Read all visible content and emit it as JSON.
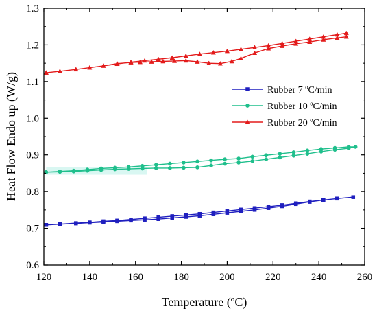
{
  "chart_data": {
    "type": "line",
    "xlabel": "Temperature (ºC)",
    "ylabel": "Heat Flow Endo up (W/g)",
    "xlim": [
      120,
      260
    ],
    "ylim": [
      0.6,
      1.3
    ],
    "xticks": [
      120,
      140,
      160,
      180,
      200,
      220,
      240,
      260
    ],
    "xtick_labels": [
      "120",
      "140",
      "160",
      "180",
      "200",
      "220",
      "240",
      "260"
    ],
    "yticks": [
      0.6,
      0.7,
      0.8,
      0.9,
      1.0,
      1.1,
      1.2,
      1.3
    ],
    "ytick_labels": [
      "0.6",
      "0.7",
      "0.8",
      "0.9",
      "1.0",
      "1.1",
      "1.2",
      "1.3"
    ],
    "grid": false,
    "legend_position": "right",
    "series": [
      {
        "name": "Rubber 7 ºC/min",
        "color": "#1f1fbf",
        "marker": "square",
        "x": [
          121,
          127,
          134,
          140,
          146,
          152,
          158,
          164,
          170,
          176,
          182,
          188,
          194,
          200,
          206,
          212,
          218,
          224,
          230,
          236,
          242,
          248,
          255,
          248,
          242,
          236,
          230,
          224,
          218,
          212,
          206,
          200,
          194,
          188,
          182,
          176,
          170,
          164,
          158,
          152,
          146,
          140,
          134,
          127,
          121
        ],
        "y": [
          0.709,
          0.711,
          0.713,
          0.715,
          0.717,
          0.719,
          0.721,
          0.723,
          0.725,
          0.728,
          0.731,
          0.734,
          0.738,
          0.742,
          0.746,
          0.75,
          0.755,
          0.76,
          0.766,
          0.772,
          0.777,
          0.781,
          0.785,
          0.781,
          0.777,
          0.773,
          0.768,
          0.763,
          0.759,
          0.755,
          0.751,
          0.747,
          0.743,
          0.739,
          0.736,
          0.733,
          0.73,
          0.727,
          0.724,
          0.721,
          0.719,
          0.716,
          0.714,
          0.711,
          0.709
        ]
      },
      {
        "name": "Rubber 10 ºC/min",
        "color": "#1fbf8c",
        "marker": "circle",
        "x": [
          121,
          127,
          133,
          139,
          145,
          151,
          157,
          163,
          169,
          175,
          181,
          187,
          193,
          199,
          205,
          211,
          217,
          223,
          229,
          235,
          241,
          247,
          253,
          256,
          253,
          247,
          241,
          235,
          229,
          223,
          217,
          211,
          205,
          199,
          193,
          187,
          181,
          175,
          169,
          163,
          157,
          151,
          145,
          139,
          133,
          127,
          121
        ],
        "y": [
          0.853,
          0.854,
          0.855,
          0.857,
          0.859,
          0.861,
          0.862,
          0.863,
          0.864,
          0.864,
          0.865,
          0.866,
          0.871,
          0.876,
          0.879,
          0.883,
          0.888,
          0.893,
          0.898,
          0.903,
          0.909,
          0.914,
          0.918,
          0.922,
          0.922,
          0.919,
          0.916,
          0.912,
          0.907,
          0.903,
          0.899,
          0.895,
          0.89,
          0.888,
          0.885,
          0.882,
          0.879,
          0.876,
          0.873,
          0.87,
          0.867,
          0.865,
          0.863,
          0.86,
          0.857,
          0.855,
          0.853
        ]
      },
      {
        "name": "Rubber 20 ºC/min",
        "color": "#e31b1b",
        "marker": "triangle",
        "x": [
          121,
          127,
          134,
          140,
          146,
          152,
          158,
          164,
          170,
          176,
          182,
          188,
          194,
          200,
          206,
          212,
          218,
          224,
          230,
          236,
          242,
          248,
          252,
          252,
          248,
          242,
          236,
          230,
          224,
          218,
          212,
          206,
          202,
          197,
          192,
          187,
          182,
          177,
          172,
          167,
          162,
          158,
          152,
          146,
          140,
          134,
          127,
          121
        ],
        "y": [
          1.124,
          1.128,
          1.133,
          1.138,
          1.143,
          1.148,
          1.153,
          1.157,
          1.161,
          1.165,
          1.17,
          1.175,
          1.179,
          1.183,
          1.188,
          1.193,
          1.198,
          1.204,
          1.21,
          1.216,
          1.222,
          1.228,
          1.232,
          1.222,
          1.219,
          1.214,
          1.208,
          1.203,
          1.197,
          1.19,
          1.178,
          1.163,
          1.155,
          1.149,
          1.15,
          1.154,
          1.157,
          1.156,
          1.155,
          1.154,
          1.153,
          1.152,
          1.149,
          1.143,
          1.138,
          1.133,
          1.128,
          1.124
        ]
      }
    ]
  }
}
